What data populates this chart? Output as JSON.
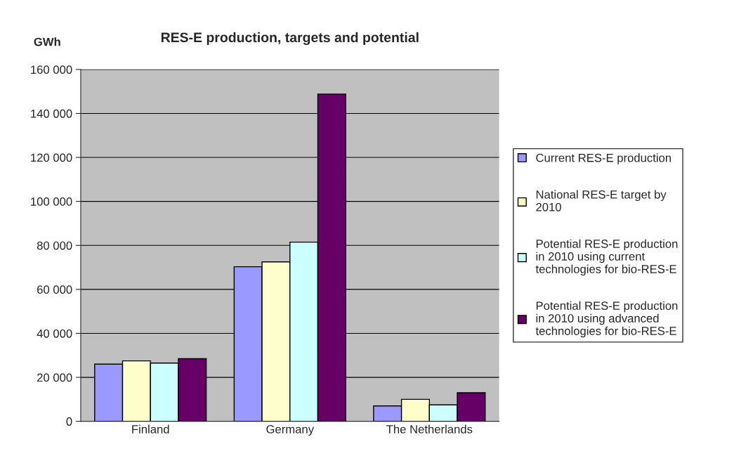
{
  "chart_data": {
    "type": "bar",
    "title": "RES-E production, targets and potential",
    "ylabel": "GWh",
    "categories": [
      "Finland",
      "Germany",
      "The Netherlands"
    ],
    "series": [
      {
        "name": "Current RES-E production",
        "color": "#9999ff",
        "values": [
          26000,
          70300,
          7000
        ]
      },
      {
        "name": "National RES-E target by 2010",
        "color": "#ffffcc",
        "values": [
          27500,
          72500,
          10000
        ]
      },
      {
        "name": "Potential RES-E production in 2010 using current technologies for bio-RES-E",
        "color": "#ccffff",
        "values": [
          26500,
          81500,
          7500
        ]
      },
      {
        "name": "Potential RES-E production in 2010 using advanced technologies for bio-RES-E",
        "color": "#660066",
        "values": [
          28500,
          148800,
          13000
        ]
      }
    ],
    "ylim": [
      0,
      160000
    ],
    "yticks": [
      0,
      {
        "value": 20000,
        "label": "20 000"
      },
      {
        "value": 40000,
        "label": "40 000"
      },
      {
        "value": 60000,
        "label": "60 000"
      },
      {
        "value": 80000,
        "label": "80 000"
      },
      {
        "value": 100000,
        "label": "100 000"
      },
      {
        "value": 120000,
        "label": "120 000"
      },
      {
        "value": 140000,
        "label": "140 000"
      },
      {
        "value": 160000,
        "label": "160 000"
      }
    ],
    "grid": "y",
    "legend": "right"
  }
}
